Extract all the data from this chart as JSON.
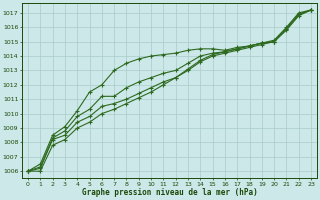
{
  "xlabel": "Graphe pression niveau de la mer (hPa)",
  "x": [
    0,
    1,
    2,
    3,
    4,
    5,
    6,
    7,
    8,
    9,
    10,
    11,
    12,
    13,
    14,
    15,
    16,
    17,
    18,
    19,
    20,
    21,
    22,
    23
  ],
  "line1": [
    1006.0,
    1006.5,
    1008.5,
    1009.1,
    1010.2,
    1011.5,
    1012.0,
    1013.0,
    1013.5,
    1013.8,
    1014.0,
    1014.1,
    1014.2,
    1014.4,
    1014.5,
    1014.5,
    1014.4,
    1014.6,
    1014.7,
    1014.9,
    1015.0,
    1015.8,
    1016.8,
    1017.2
  ],
  "line2": [
    1006.0,
    1006.3,
    1008.3,
    1008.8,
    1009.8,
    1010.3,
    1011.2,
    1011.2,
    1011.8,
    1012.2,
    1012.5,
    1012.8,
    1013.0,
    1013.5,
    1014.0,
    1014.2,
    1014.3,
    1014.5,
    1014.7,
    1014.9,
    1015.0,
    1015.9,
    1016.9,
    1017.2
  ],
  "line3": [
    1006.0,
    1006.2,
    1008.2,
    1008.5,
    1009.4,
    1009.8,
    1010.5,
    1010.7,
    1011.0,
    1011.4,
    1011.8,
    1012.2,
    1012.5,
    1013.0,
    1013.6,
    1014.0,
    1014.2,
    1014.4,
    1014.6,
    1014.8,
    1015.0,
    1015.9,
    1016.9,
    1017.2
  ],
  "line4": [
    1006.0,
    1006.0,
    1007.8,
    1008.2,
    1009.0,
    1009.4,
    1010.0,
    1010.3,
    1010.7,
    1011.1,
    1011.5,
    1012.0,
    1012.5,
    1013.1,
    1013.7,
    1014.1,
    1014.3,
    1014.5,
    1014.7,
    1014.9,
    1015.1,
    1016.0,
    1017.0,
    1017.2
  ],
  "line_color": "#2d6a1f",
  "bg_color": "#cde8e8",
  "grid_color": "#aacccc",
  "text_color": "#1a4a0a",
  "ylim": [
    1005.5,
    1017.7
  ],
  "yticks": [
    1006,
    1007,
    1008,
    1009,
    1010,
    1011,
    1012,
    1013,
    1014,
    1015,
    1016,
    1017
  ],
  "xticks": [
    0,
    1,
    2,
    3,
    4,
    5,
    6,
    7,
    8,
    9,
    10,
    11,
    12,
    13,
    14,
    15,
    16,
    17,
    18,
    19,
    20,
    21,
    22,
    23
  ],
  "marker": "+",
  "markersize": 3,
  "linewidth": 0.8
}
